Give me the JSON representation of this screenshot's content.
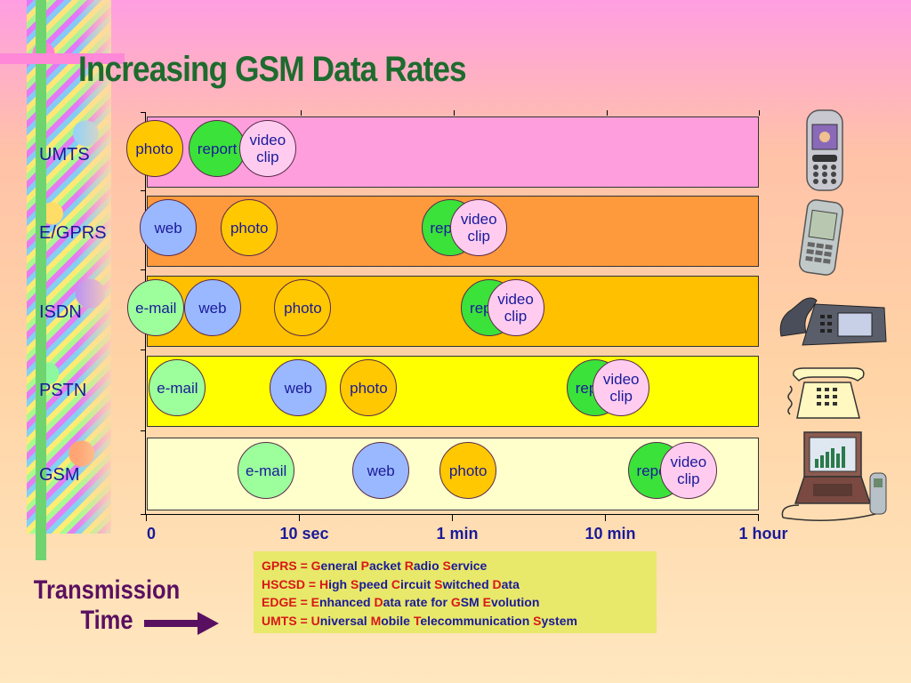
{
  "title": "Increasing GSM Data Rates",
  "chart_data": {
    "type": "timeline",
    "title": "Increasing GSM Data Rates",
    "rows": [
      {
        "name": "UMTS",
        "color": "#ff9edc",
        "items": [
          {
            "label": "photo",
            "color": "#ffc800",
            "x": 0.05
          },
          {
            "label": "report",
            "color": "#3ae23a",
            "x": 0.46
          },
          {
            "label": "video clip",
            "color": "#ffccf0",
            "x": 0.79
          }
        ]
      },
      {
        "name": "E/GPRS",
        "color": "#ff9a3c",
        "items": [
          {
            "label": "web",
            "color": "#9ab8ff",
            "x": 0.14
          },
          {
            "label": "photo",
            "color": "#ffc800",
            "x": 0.67
          },
          {
            "label": "report",
            "color": "#3ae23a",
            "x": 1.98
          },
          {
            "label": "video clip",
            "color": "#ffccf0",
            "x": 2.17
          }
        ]
      },
      {
        "name": "ISDN",
        "color": "#ffc000",
        "items": [
          {
            "label": "e-mail",
            "color": "#9cff9c",
            "x": 0.06
          },
          {
            "label": "web",
            "color": "#9ab8ff",
            "x": 0.43
          },
          {
            "label": "photo",
            "color": "#ffc800",
            "x": 1.02
          },
          {
            "label": "report",
            "color": "#3ae23a",
            "x": 2.24
          },
          {
            "label": "video clip",
            "color": "#ffccf0",
            "x": 2.41
          }
        ]
      },
      {
        "name": "PSTN",
        "color": "#ffff00",
        "items": [
          {
            "label": "e-mail",
            "color": "#9cff9c",
            "x": 0.2
          },
          {
            "label": "web",
            "color": "#9ab8ff",
            "x": 0.99
          },
          {
            "label": "photo",
            "color": "#ffc800",
            "x": 1.45
          },
          {
            "label": "report",
            "color": "#3ae23a",
            "x": 2.93
          },
          {
            "label": "video clip",
            "color": "#ffccf0",
            "x": 3.1
          }
        ]
      },
      {
        "name": "GSM",
        "color": "#ffffcc",
        "items": [
          {
            "label": "e-mail",
            "color": "#9cff9c",
            "x": 0.78
          },
          {
            "label": "web",
            "color": "#9ab8ff",
            "x": 1.53
          },
          {
            "label": "photo",
            "color": "#ffc800",
            "x": 2.1
          },
          {
            "label": "report",
            "color": "#3ae23a",
            "x": 3.33
          },
          {
            "label": "video clip",
            "color": "#ffccf0",
            "x": 3.54
          }
        ]
      }
    ],
    "x_ticks": [
      "0",
      "10 sec",
      "1 min",
      "10 min",
      "1 hour"
    ]
  },
  "legend": [
    {
      "abbr": "GPRS",
      "parts": [
        [
          "G",
          "eneral "
        ],
        [
          "P",
          "acket "
        ],
        [
          "R",
          "adio "
        ],
        [
          "S",
          "ervice"
        ]
      ]
    },
    {
      "abbr": "HSCSD",
      "parts": [
        [
          "H",
          "igh "
        ],
        [
          "S",
          "peed "
        ],
        [
          "C",
          "ircuit "
        ],
        [
          "S",
          "witched "
        ],
        [
          "D",
          "ata"
        ]
      ]
    },
    {
      "abbr": "EDGE",
      "parts": [
        [
          "E",
          "nhanced "
        ],
        [
          "D",
          "ata rate for "
        ],
        [
          "G",
          "SM "
        ],
        [
          "E",
          "volution"
        ]
      ]
    },
    {
      "abbr": "UMTS",
      "parts": [
        [
          "U",
          "niversal "
        ],
        [
          "M",
          "obile "
        ],
        [
          "T",
          "elecommunication "
        ],
        [
          "S",
          "ystem"
        ]
      ]
    }
  ],
  "transmission_time": "Transmission\nTime",
  "colors": {
    "title": "#1e6b2e",
    "text": "#1a1a99",
    "legend_bg": "#e8e86a",
    "legend_red": "#d81818",
    "arrow": "#5a1060"
  }
}
